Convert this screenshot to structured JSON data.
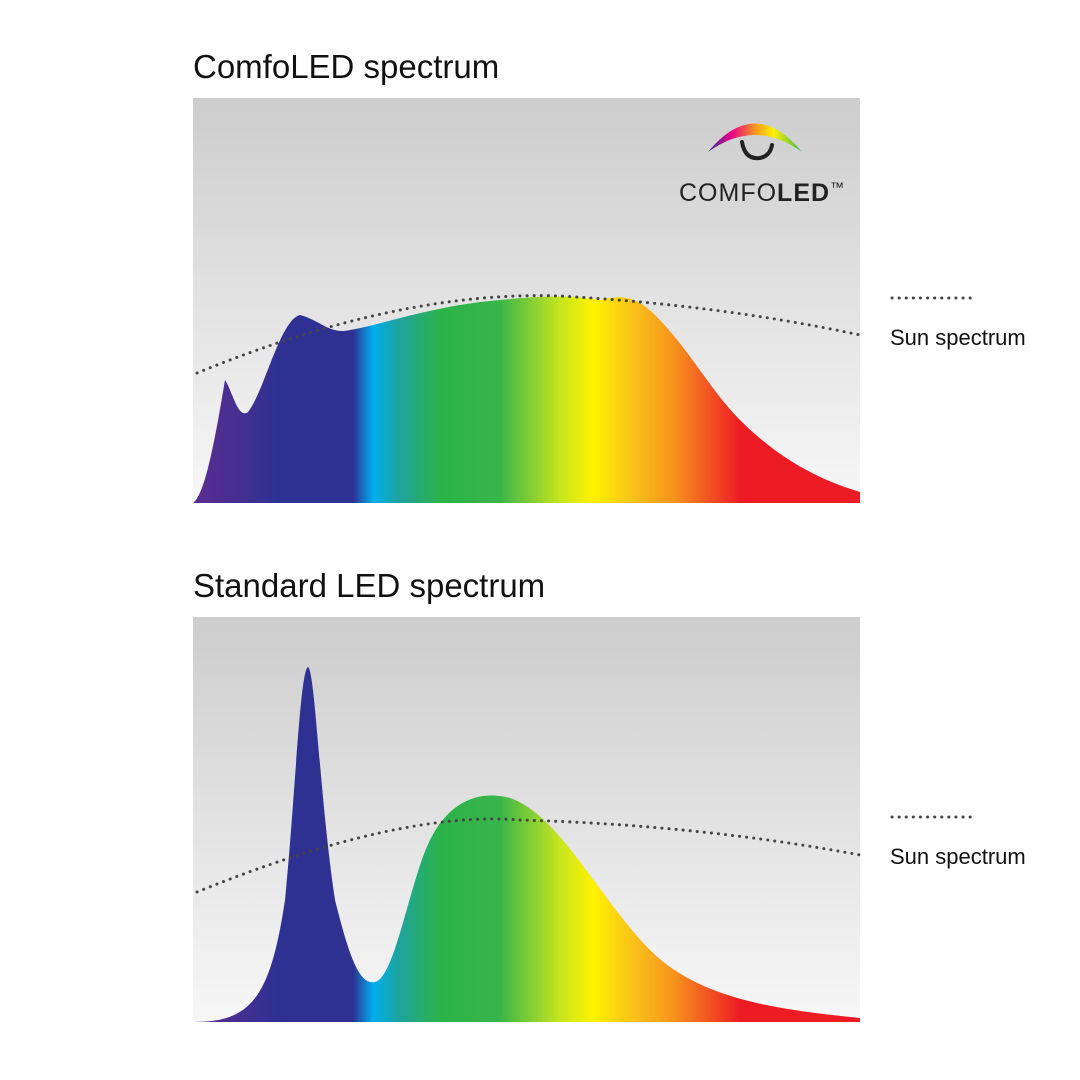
{
  "panels": [
    {
      "title": "ComfoLED spectrum",
      "legend": "Sun spectrum",
      "logo": {
        "prefix": "COMFO",
        "bold": "LED",
        "mark": "™"
      }
    },
    {
      "title": "Standard LED spectrum",
      "legend": "Sun spectrum"
    }
  ]
}
